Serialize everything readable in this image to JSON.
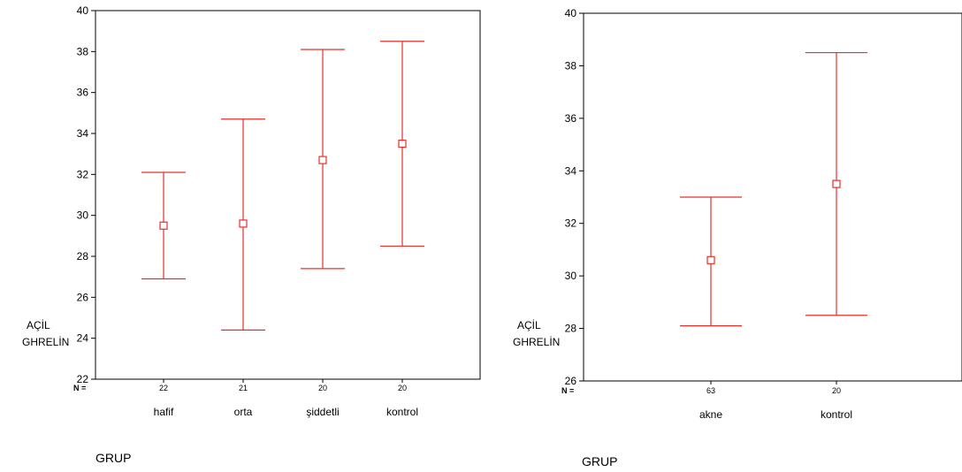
{
  "chart_data": [
    {
      "type": "errorbar",
      "xlabel": "GRUP",
      "ylabel_lines": [
        "AÇİL",
        "GHRELİN"
      ],
      "ylim": [
        22,
        40
      ],
      "yticks": [
        22,
        24,
        26,
        28,
        30,
        32,
        34,
        36,
        38,
        40
      ],
      "n_label": "N =",
      "categories": [
        "hafif",
        "orta",
        "şiddetli",
        "kontrol"
      ],
      "n": [
        "22",
        "21",
        "20",
        "20"
      ],
      "mean": [
        29.5,
        29.6,
        32.7,
        33.5
      ],
      "lower": [
        26.9,
        24.4,
        27.4,
        28.5
      ],
      "upper": [
        32.1,
        34.7,
        38.1,
        38.5
      ],
      "color": "#e8302a"
    },
    {
      "type": "errorbar",
      "xlabel": "GRUP",
      "ylabel_lines": [
        "AÇİL",
        "GHRELİN"
      ],
      "ylim": [
        26,
        40
      ],
      "yticks": [
        26,
        28,
        30,
        32,
        34,
        36,
        38,
        40
      ],
      "n_label": "N =",
      "categories": [
        "akne",
        "kontrol"
      ],
      "n": [
        "63",
        "20"
      ],
      "mean": [
        30.6,
        33.5
      ],
      "lower": [
        28.1,
        28.5
      ],
      "upper": [
        33.0,
        38.5
      ],
      "color": "#e8302a"
    }
  ]
}
